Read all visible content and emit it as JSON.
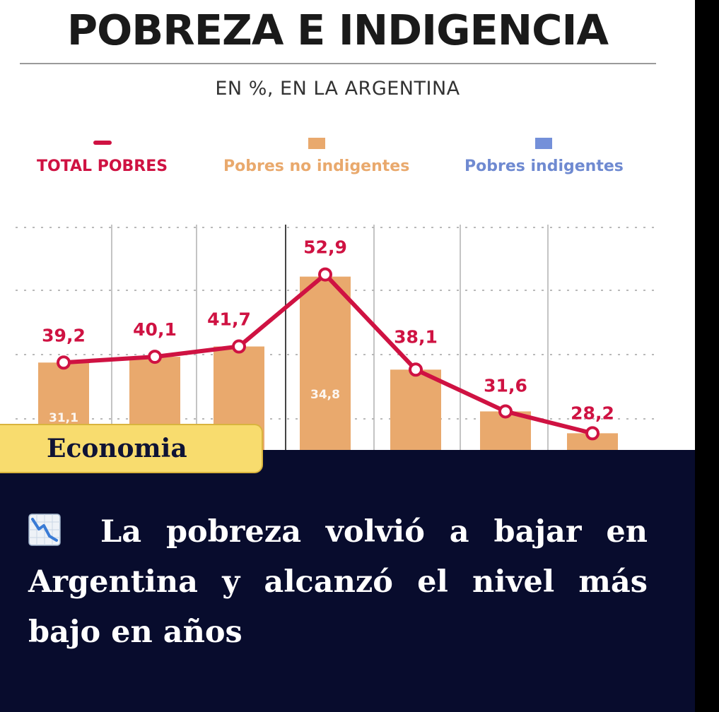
{
  "header": {
    "title": "POBREZA E INDIGENCIA",
    "subtitle": "EN %, EN LA ARGENTINA"
  },
  "legend": {
    "total": "TOTAL POBRES",
    "no_indigentes": "Pobres no indigentes",
    "indigentes": "Pobres indigentes"
  },
  "colors": {
    "total_line": "#cf1242",
    "no_indigentes": "#e9a96d",
    "indigentes": "#7490d9",
    "panel": "#080c2d",
    "tag": "#f8dc6e"
  },
  "chart_data": {
    "type": "bar",
    "title": "POBREZA E INDIGENCIA",
    "subtitle": "EN %, EN LA ARGENTINA",
    "categories": [
      "",
      "",
      "",
      "",
      "",
      "",
      ""
    ],
    "series": [
      {
        "name": "TOTAL POBRES",
        "kind": "line",
        "values": [
          39.2,
          40.1,
          41.7,
          52.9,
          38.1,
          31.6,
          28.2
        ],
        "labels": [
          "39,2",
          "40,1",
          "41,7",
          "52,9",
          "38,1",
          "31,6",
          "28,2"
        ]
      },
      {
        "name": "Pobres no indigentes",
        "kind": "bar",
        "values": [
          31.1,
          null,
          null,
          34.8,
          null,
          null,
          null
        ],
        "labels": [
          "31,1",
          "",
          "",
          "34,8",
          "",
          "",
          ""
        ]
      }
    ],
    "grid": true,
    "legend_position": "top"
  },
  "tag": {
    "label": "Economia"
  },
  "headline": {
    "icon": "chart-decreasing-icon",
    "text": "La pobreza volvió a bajar en Argentina y alcanzó el nivel más bajo en años"
  }
}
